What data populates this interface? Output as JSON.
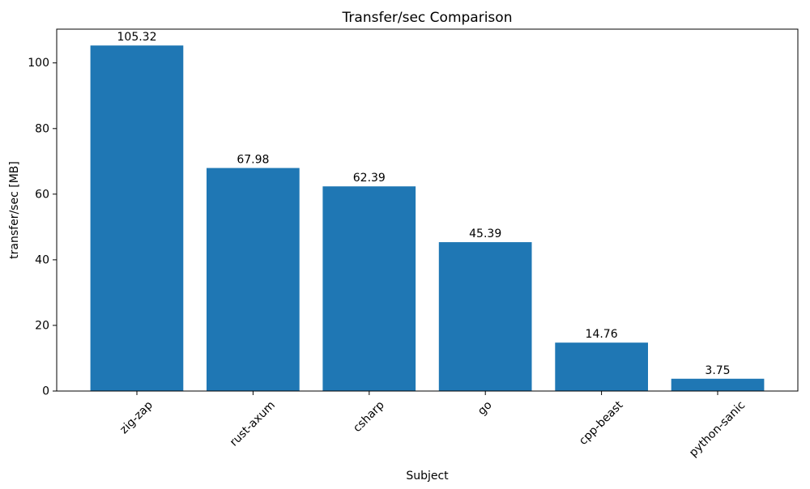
{
  "chart_data": {
    "type": "bar",
    "title": "Transfer/sec Comparison",
    "xlabel": "Subject",
    "ylabel": "transfer/sec [MB]",
    "categories": [
      "zig-zap",
      "rust-axum",
      "csharp",
      "go",
      "cpp-beast",
      "python-sanic"
    ],
    "values": [
      105.32,
      67.98,
      62.39,
      45.39,
      14.76,
      3.75
    ],
    "bar_labels": [
      "105.32",
      "67.98",
      "62.39",
      "45.39",
      "14.76",
      "3.75"
    ],
    "yticks": [
      0,
      20,
      40,
      60,
      80,
      100
    ],
    "ylim": [
      0,
      110.3
    ],
    "bar_color": "#1f77b4",
    "axis_color": "#000000",
    "x_tick_rotation": 45,
    "bar_width_fraction": 0.8,
    "grid": false,
    "legend": "none"
  }
}
